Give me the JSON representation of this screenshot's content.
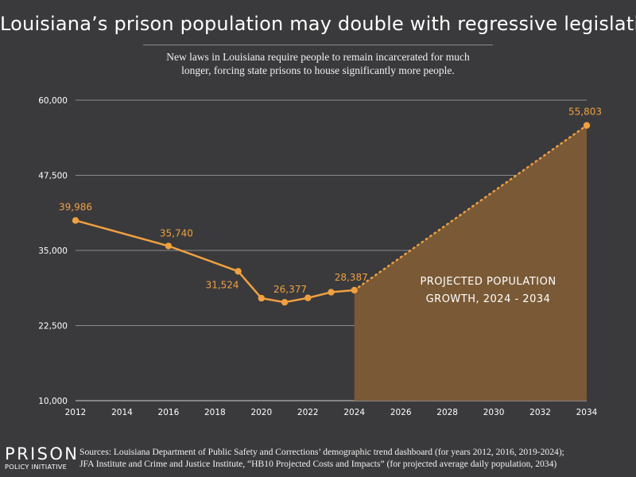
{
  "page": {
    "title": "Louisiana’s prison population may double with regressive legislation",
    "subtitle_line1": "New laws in Louisiana require people to remain incarcerated for much",
    "subtitle_line2": "longer, forcing state prisons to house significantly more people.",
    "logo_main": "PRISON",
    "logo_sub": "POLICY INITIATIVE",
    "sources_line1": "Sources: Louisiana Department of Public Safety and Corrections’ demographic trend dashboard (for years 2012, 2016, 2019-2024);",
    "sources_line2": "JFA Institute and Crime and Justice Institute, “HB10 Projected Costs and Impacts” (for projected average daily population, 2034)"
  },
  "colors": {
    "background": "#3a3a3c",
    "line": "#f0a040",
    "projection_fill": "#7a5a36",
    "gridline": "#8a8a8c"
  },
  "chart_data": {
    "type": "line",
    "title": "Louisiana’s prison population may double with regressive legislation",
    "xlabel": "",
    "ylabel": "",
    "xlim": [
      2012,
      2034
    ],
    "ylim": [
      10000,
      60000
    ],
    "x_ticks": [
      2012,
      2014,
      2016,
      2018,
      2020,
      2022,
      2024,
      2026,
      2028,
      2030,
      2032,
      2034
    ],
    "y_ticks": [
      10000,
      22500,
      35000,
      47500,
      60000
    ],
    "y_tick_labels": [
      "10,000",
      "22,500",
      "35,000",
      "47,500",
      "60,000"
    ],
    "grid": true,
    "series": [
      {
        "values_x": [
          2012,
          2016,
          2019,
          2020,
          2021,
          2022,
          2023,
          2024
        ],
        "values_y": [
          39986,
          35740,
          31524,
          27050,
          26377,
          27100,
          28050,
          28387
        ]
      }
    ],
    "projection": {
      "from": {
        "x": 2024,
        "y": 28387
      },
      "to": {
        "x": 2034,
        "y": 55803
      },
      "label_line1": "PROJECTED POPULATION",
      "label_line2": "GROWTH, 2024 - 2034"
    },
    "data_labels": [
      {
        "x": 2012,
        "y": 39986,
        "text": "39,986"
      },
      {
        "x": 2016,
        "y": 35740,
        "text": "35,740"
      },
      {
        "x": 2019,
        "y": 31524,
        "text": "31,524"
      },
      {
        "x": 2021,
        "y": 26377,
        "text": "26,377"
      },
      {
        "x": 2024,
        "y": 28387,
        "text": "28,387"
      },
      {
        "x": 2034,
        "y": 55803,
        "text": "55,803"
      }
    ]
  }
}
